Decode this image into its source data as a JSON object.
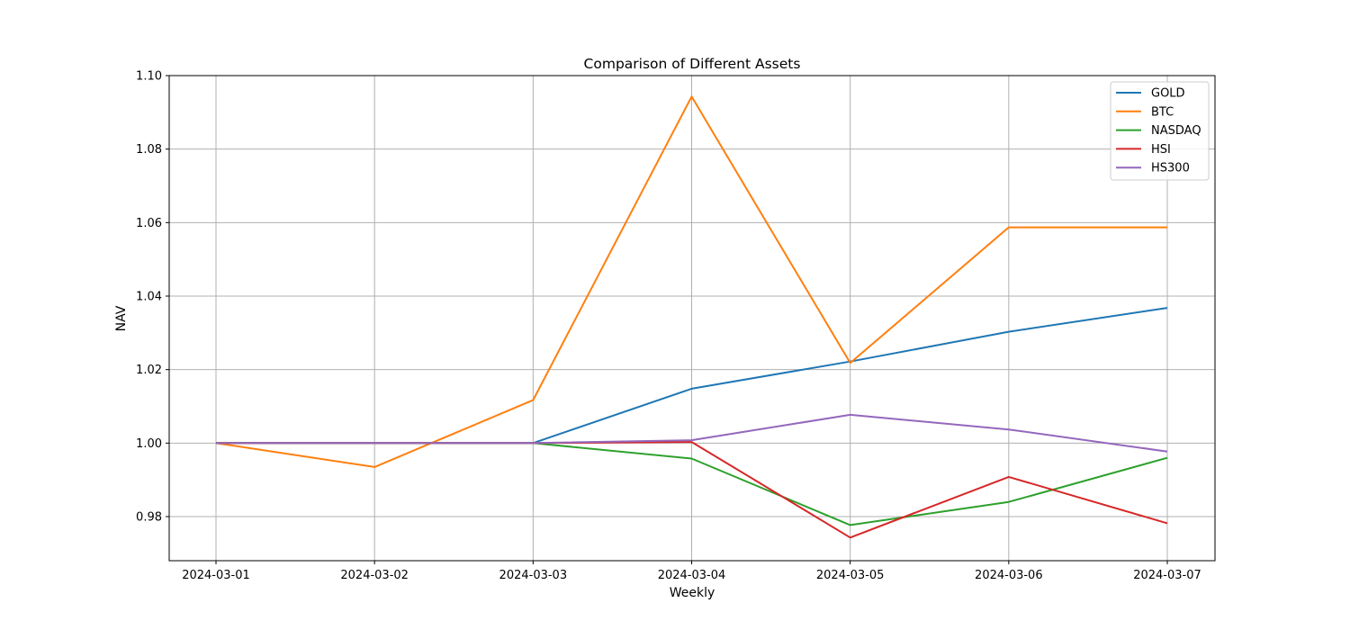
{
  "chart_data": {
    "type": "line",
    "title": "Comparison of Different Assets",
    "xlabel": "Weekly",
    "ylabel": "NAV",
    "categories": [
      "2024-03-01",
      "2024-03-02",
      "2024-03-03",
      "2024-03-04",
      "2024-03-05",
      "2024-03-06",
      "2024-03-07"
    ],
    "ylim": [
      0.968,
      1.1
    ],
    "yticks": [
      "0.98",
      "1.00",
      "1.02",
      "1.04",
      "1.06",
      "1.08",
      "1.10"
    ],
    "grid": true,
    "legend_position": "top-right",
    "series": [
      {
        "name": "GOLD",
        "color": "#1f77b4",
        "values": [
          1.0,
          1.0,
          1.0,
          1.0148,
          1.0222,
          1.0303,
          1.0368
        ]
      },
      {
        "name": "BTC",
        "color": "#ff7f0e",
        "values": [
          1.0,
          0.9935,
          1.0117,
          1.0943,
          1.0218,
          1.0587,
          1.0587
        ]
      },
      {
        "name": "NASDAQ",
        "color": "#2ca02c",
        "values": [
          1.0,
          1.0,
          1.0,
          0.9958,
          0.9777,
          0.984,
          0.996
        ]
      },
      {
        "name": "HSI",
        "color": "#d62728",
        "values": [
          1.0,
          1.0,
          1.0,
          1.0003,
          0.9743,
          0.9908,
          0.9782
        ]
      },
      {
        "name": "HS300",
        "color": "#9467bd",
        "values": [
          1.0,
          1.0,
          1.0,
          1.0008,
          1.0077,
          1.0037,
          0.9977
        ]
      }
    ]
  }
}
